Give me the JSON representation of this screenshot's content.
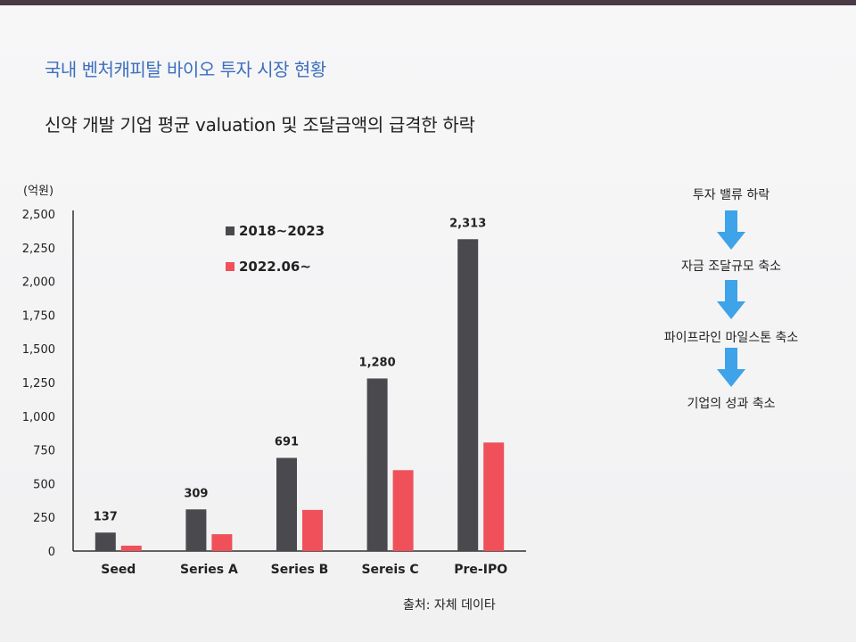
{
  "section_title": "국내 벤처캐피탈 바이오 투자 시장 현황",
  "headline": "신약 개발 기업 평균 valuation 및 조달금액의 급격한 하락",
  "chart_data": {
    "type": "bar",
    "unit_label": "(억원)",
    "categories": [
      "Seed",
      "Series A",
      "Series B",
      "Sereis C",
      "Pre-IPO"
    ],
    "series": [
      {
        "name": "2018~2023",
        "values": [
          137,
          309,
          691,
          1280,
          2313
        ],
        "color": "#4a4a4e"
      },
      {
        "name": "2022.06~",
        "values": [
          40,
          125,
          305,
          600,
          805
        ],
        "color": "#f0505a"
      }
    ],
    "data_labels": [
      "137",
      "309",
      "691",
      "1,280",
      "2,313"
    ],
    "yticks": [
      0,
      250,
      500,
      750,
      1000,
      1250,
      1500,
      1750,
      2000,
      2250,
      2500
    ],
    "ytick_labels": [
      "0",
      "250",
      "500",
      "750",
      "1,000",
      "1,250",
      "1,500",
      "1,750",
      "2,000",
      "2,250",
      "2,500"
    ],
    "ylim": [
      0,
      2500
    ],
    "grid": false,
    "legend_position": "top-left"
  },
  "flow": {
    "steps": [
      "투자 밸류 하락",
      "자금 조달규모 축소",
      "파이프라인 마일스톤 축소",
      "기업의 성과 축소"
    ],
    "arrow_color": "#3ea3e8"
  },
  "source": "출처: 자체 데이타"
}
